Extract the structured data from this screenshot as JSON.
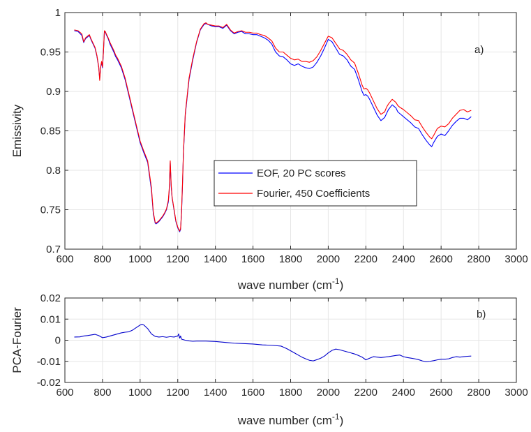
{
  "colors": {
    "eof": "#0000ff",
    "fourier": "#ff0000",
    "diff": "#0000cc",
    "grid": "#e6e6e6",
    "axis": "#262626"
  },
  "chart_data": [
    {
      "type": "line",
      "panel_label": "a)",
      "xlabel": "wave number",
      "xlabel_unit_base": "(cm",
      "xlabel_unit_exp": "-1",
      "xlabel_unit_close": ")",
      "ylabel": "Emissivity",
      "xlim": [
        600,
        3000
      ],
      "ylim": [
        0.7,
        1.0
      ],
      "xticks": [
        600,
        800,
        1000,
        1200,
        1400,
        1600,
        1800,
        2000,
        2200,
        2400,
        2600,
        2800,
        3000
      ],
      "xtick_labels": [
        "600",
        "800",
        "1000",
        "1200",
        "1400",
        "1600",
        "1800",
        "2000",
        "2200",
        "2400",
        "2600",
        "2800",
        "3000"
      ],
      "yticks": [
        0.7,
        0.75,
        0.8,
        0.85,
        0.9,
        0.95,
        1.0
      ],
      "ytick_labels": [
        "0.7",
        "0.75",
        "0.8",
        "0.85",
        "0.9",
        "0.95",
        "1"
      ],
      "grid": true,
      "legend": {
        "placement": "center"
      },
      "series": [
        {
          "name": "EOF, 20 PC scores",
          "color_key": "eof",
          "x": [
            650,
            670,
            690,
            700,
            710,
            720,
            730,
            740,
            760,
            770,
            780,
            785,
            790,
            795,
            800,
            805,
            810,
            815,
            820,
            830,
            840,
            850,
            860,
            870,
            880,
            900,
            920,
            940,
            960,
            980,
            1000,
            1020,
            1040,
            1060,
            1070,
            1080,
            1085,
            1090,
            1100,
            1110,
            1120,
            1130,
            1140,
            1150,
            1155,
            1160,
            1165,
            1170,
            1180,
            1190,
            1200,
            1210,
            1215,
            1220,
            1225,
            1230,
            1240,
            1260,
            1280,
            1300,
            1320,
            1340,
            1350,
            1360,
            1380,
            1400,
            1420,
            1440,
            1460,
            1480,
            1500,
            1520,
            1540,
            1560,
            1580,
            1600,
            1620,
            1640,
            1660,
            1680,
            1700,
            1720,
            1740,
            1760,
            1780,
            1800,
            1820,
            1840,
            1860,
            1880,
            1900,
            1920,
            1940,
            1960,
            1980,
            2000,
            2020,
            2040,
            2060,
            2080,
            2100,
            2120,
            2140,
            2160,
            2180,
            2190,
            2200,
            2210,
            2220,
            2240,
            2260,
            2280,
            2300,
            2310,
            2320,
            2340,
            2360,
            2370,
            2380,
            2400,
            2420,
            2440,
            2460,
            2480,
            2500,
            2520,
            2540,
            2550,
            2560,
            2580,
            2600,
            2620,
            2640,
            2660,
            2680,
            2700,
            2720,
            2740,
            2760
          ],
          "y": [
            0.977,
            0.976,
            0.971,
            0.962,
            0.967,
            0.969,
            0.971,
            0.965,
            0.955,
            0.945,
            0.93,
            0.916,
            0.93,
            0.937,
            0.93,
            0.95,
            0.976,
            0.975,
            0.972,
            0.967,
            0.96,
            0.955,
            0.95,
            0.944,
            0.94,
            0.93,
            0.915,
            0.895,
            0.875,
            0.855,
            0.835,
            0.822,
            0.81,
            0.775,
            0.745,
            0.733,
            0.732,
            0.733,
            0.735,
            0.738,
            0.741,
            0.745,
            0.75,
            0.76,
            0.775,
            0.81,
            0.78,
            0.765,
            0.75,
            0.735,
            0.727,
            0.722,
            0.725,
            0.745,
            0.78,
            0.82,
            0.87,
            0.915,
            0.94,
            0.962,
            0.978,
            0.985,
            0.986,
            0.985,
            0.983,
            0.982,
            0.982,
            0.98,
            0.984,
            0.977,
            0.973,
            0.975,
            0.976,
            0.973,
            0.973,
            0.972,
            0.972,
            0.97,
            0.968,
            0.965,
            0.96,
            0.95,
            0.945,
            0.944,
            0.94,
            0.935,
            0.933,
            0.935,
            0.932,
            0.93,
            0.929,
            0.931,
            0.937,
            0.945,
            0.955,
            0.966,
            0.963,
            0.955,
            0.947,
            0.945,
            0.94,
            0.932,
            0.928,
            0.915,
            0.9,
            0.895,
            0.896,
            0.894,
            0.89,
            0.88,
            0.87,
            0.863,
            0.867,
            0.872,
            0.877,
            0.883,
            0.879,
            0.874,
            0.872,
            0.868,
            0.864,
            0.86,
            0.855,
            0.853,
            0.845,
            0.838,
            0.832,
            0.83,
            0.835,
            0.843,
            0.846,
            0.844,
            0.85,
            0.857,
            0.862,
            0.866,
            0.866,
            0.864,
            0.868
          ]
        },
        {
          "name": "Fourier, 450 Coefficients",
          "color_key": "fourier",
          "x": [
            650,
            670,
            690,
            700,
            710,
            720,
            730,
            740,
            760,
            770,
            780,
            785,
            790,
            795,
            800,
            805,
            810,
            815,
            820,
            830,
            840,
            850,
            860,
            870,
            880,
            900,
            920,
            940,
            960,
            980,
            1000,
            1020,
            1040,
            1060,
            1070,
            1080,
            1085,
            1090,
            1100,
            1110,
            1120,
            1130,
            1140,
            1150,
            1155,
            1160,
            1165,
            1170,
            1180,
            1190,
            1200,
            1210,
            1215,
            1220,
            1225,
            1230,
            1240,
            1260,
            1280,
            1300,
            1320,
            1340,
            1350,
            1360,
            1380,
            1400,
            1420,
            1440,
            1460,
            1480,
            1500,
            1520,
            1540,
            1560,
            1580,
            1600,
            1620,
            1640,
            1660,
            1680,
            1700,
            1720,
            1740,
            1760,
            1780,
            1800,
            1820,
            1840,
            1860,
            1880,
            1900,
            1920,
            1940,
            1960,
            1980,
            2000,
            2020,
            2040,
            2060,
            2080,
            2100,
            2120,
            2140,
            2160,
            2180,
            2190,
            2200,
            2210,
            2220,
            2240,
            2260,
            2280,
            2300,
            2310,
            2320,
            2340,
            2360,
            2370,
            2380,
            2400,
            2420,
            2440,
            2460,
            2480,
            2500,
            2520,
            2540,
            2550,
            2560,
            2580,
            2600,
            2620,
            2640,
            2660,
            2680,
            2700,
            2720,
            2740,
            2760
          ],
          "y": [
            0.978,
            0.977,
            0.973,
            0.963,
            0.968,
            0.97,
            0.972,
            0.966,
            0.956,
            0.946,
            0.931,
            0.914,
            0.931,
            0.938,
            0.931,
            0.951,
            0.977,
            0.976,
            0.973,
            0.968,
            0.962,
            0.957,
            0.952,
            0.946,
            0.942,
            0.932,
            0.917,
            0.897,
            0.877,
            0.857,
            0.837,
            0.824,
            0.812,
            0.778,
            0.747,
            0.734,
            0.733,
            0.734,
            0.736,
            0.739,
            0.742,
            0.746,
            0.751,
            0.762,
            0.778,
            0.812,
            0.782,
            0.766,
            0.751,
            0.736,
            0.728,
            0.723,
            0.726,
            0.747,
            0.782,
            0.822,
            0.872,
            0.917,
            0.942,
            0.963,
            0.979,
            0.986,
            0.987,
            0.985,
            0.984,
            0.983,
            0.983,
            0.981,
            0.985,
            0.978,
            0.974,
            0.976,
            0.977,
            0.975,
            0.975,
            0.974,
            0.974,
            0.972,
            0.971,
            0.968,
            0.964,
            0.955,
            0.95,
            0.95,
            0.946,
            0.942,
            0.94,
            0.941,
            0.938,
            0.938,
            0.937,
            0.939,
            0.944,
            0.952,
            0.961,
            0.97,
            0.968,
            0.961,
            0.954,
            0.952,
            0.947,
            0.94,
            0.936,
            0.923,
            0.908,
            0.903,
            0.904,
            0.902,
            0.898,
            0.888,
            0.878,
            0.871,
            0.874,
            0.88,
            0.884,
            0.89,
            0.886,
            0.882,
            0.88,
            0.877,
            0.873,
            0.869,
            0.864,
            0.863,
            0.855,
            0.848,
            0.842,
            0.84,
            0.844,
            0.853,
            0.856,
            0.855,
            0.859,
            0.866,
            0.871,
            0.876,
            0.877,
            0.874,
            0.876
          ]
        }
      ]
    },
    {
      "type": "line",
      "panel_label": "b)",
      "xlabel": "wave number",
      "xlabel_unit_base": "(cm",
      "xlabel_unit_exp": "-1",
      "xlabel_unit_close": ")",
      "ylabel": "PCA-Fourier",
      "xlim": [
        600,
        3000
      ],
      "ylim": [
        -0.02,
        0.02
      ],
      "xticks": [
        600,
        800,
        1000,
        1200,
        1400,
        1600,
        1800,
        2000,
        2200,
        2400,
        2600,
        2800,
        3000
      ],
      "xtick_labels": [
        "600",
        "800",
        "1000",
        "1200",
        "1400",
        "1600",
        "1800",
        "2000",
        "2200",
        "2400",
        "2600",
        "2800",
        "3000"
      ],
      "yticks": [
        -0.02,
        -0.01,
        0,
        0.01,
        0.02
      ],
      "ytick_labels": [
        "-0.02",
        "-0.01",
        "0",
        "0.01",
        "0.02"
      ],
      "grid": true,
      "series": [
        {
          "color_key": "diff",
          "x": [
            650,
            680,
            700,
            720,
            740,
            760,
            780,
            800,
            820,
            840,
            860,
            880,
            900,
            920,
            940,
            960,
            980,
            1000,
            1010,
            1020,
            1040,
            1060,
            1080,
            1100,
            1120,
            1140,
            1160,
            1180,
            1200,
            1205,
            1210,
            1215,
            1220,
            1240,
            1260,
            1280,
            1300,
            1350,
            1400,
            1450,
            1500,
            1550,
            1600,
            1650,
            1700,
            1750,
            1780,
            1800,
            1820,
            1840,
            1860,
            1880,
            1900,
            1920,
            1940,
            1960,
            1980,
            2000,
            2020,
            2040,
            2060,
            2080,
            2100,
            2120,
            2140,
            2160,
            2180,
            2200,
            2220,
            2240,
            2260,
            2280,
            2300,
            2320,
            2340,
            2360,
            2380,
            2400,
            2420,
            2440,
            2460,
            2480,
            2500,
            2520,
            2540,
            2560,
            2580,
            2600,
            2620,
            2640,
            2660,
            2680,
            2700,
            2720,
            2740,
            2760
          ],
          "y": [
            0.0015,
            0.0016,
            0.002,
            0.0022,
            0.0025,
            0.0028,
            0.0022,
            0.0012,
            0.0015,
            0.002,
            0.0025,
            0.003,
            0.0035,
            0.0038,
            0.004,
            0.0048,
            0.006,
            0.0072,
            0.0075,
            0.0072,
            0.0055,
            0.003,
            0.0018,
            0.0015,
            0.0017,
            0.0014,
            0.0017,
            0.0015,
            0.002,
            0.003,
            0.001,
            0.002,
            0.0005,
            0.0,
            -0.0003,
            -0.0005,
            -0.0004,
            -0.0004,
            -0.0006,
            -0.001,
            -0.0014,
            -0.0016,
            -0.0018,
            -0.0022,
            -0.0024,
            -0.0028,
            -0.004,
            -0.005,
            -0.006,
            -0.007,
            -0.008,
            -0.0088,
            -0.0095,
            -0.0098,
            -0.0092,
            -0.0085,
            -0.0075,
            -0.006,
            -0.0048,
            -0.0042,
            -0.0045,
            -0.005,
            -0.0055,
            -0.006,
            -0.0065,
            -0.0072,
            -0.008,
            -0.0093,
            -0.0085,
            -0.0078,
            -0.008,
            -0.0082,
            -0.008,
            -0.0078,
            -0.0075,
            -0.0072,
            -0.007,
            -0.0078,
            -0.0082,
            -0.0085,
            -0.0088,
            -0.0092,
            -0.0098,
            -0.0102,
            -0.01,
            -0.0097,
            -0.0093,
            -0.009,
            -0.009,
            -0.0088,
            -0.0082,
            -0.0078,
            -0.008,
            -0.0078,
            -0.0076,
            -0.0075
          ]
        }
      ]
    }
  ]
}
